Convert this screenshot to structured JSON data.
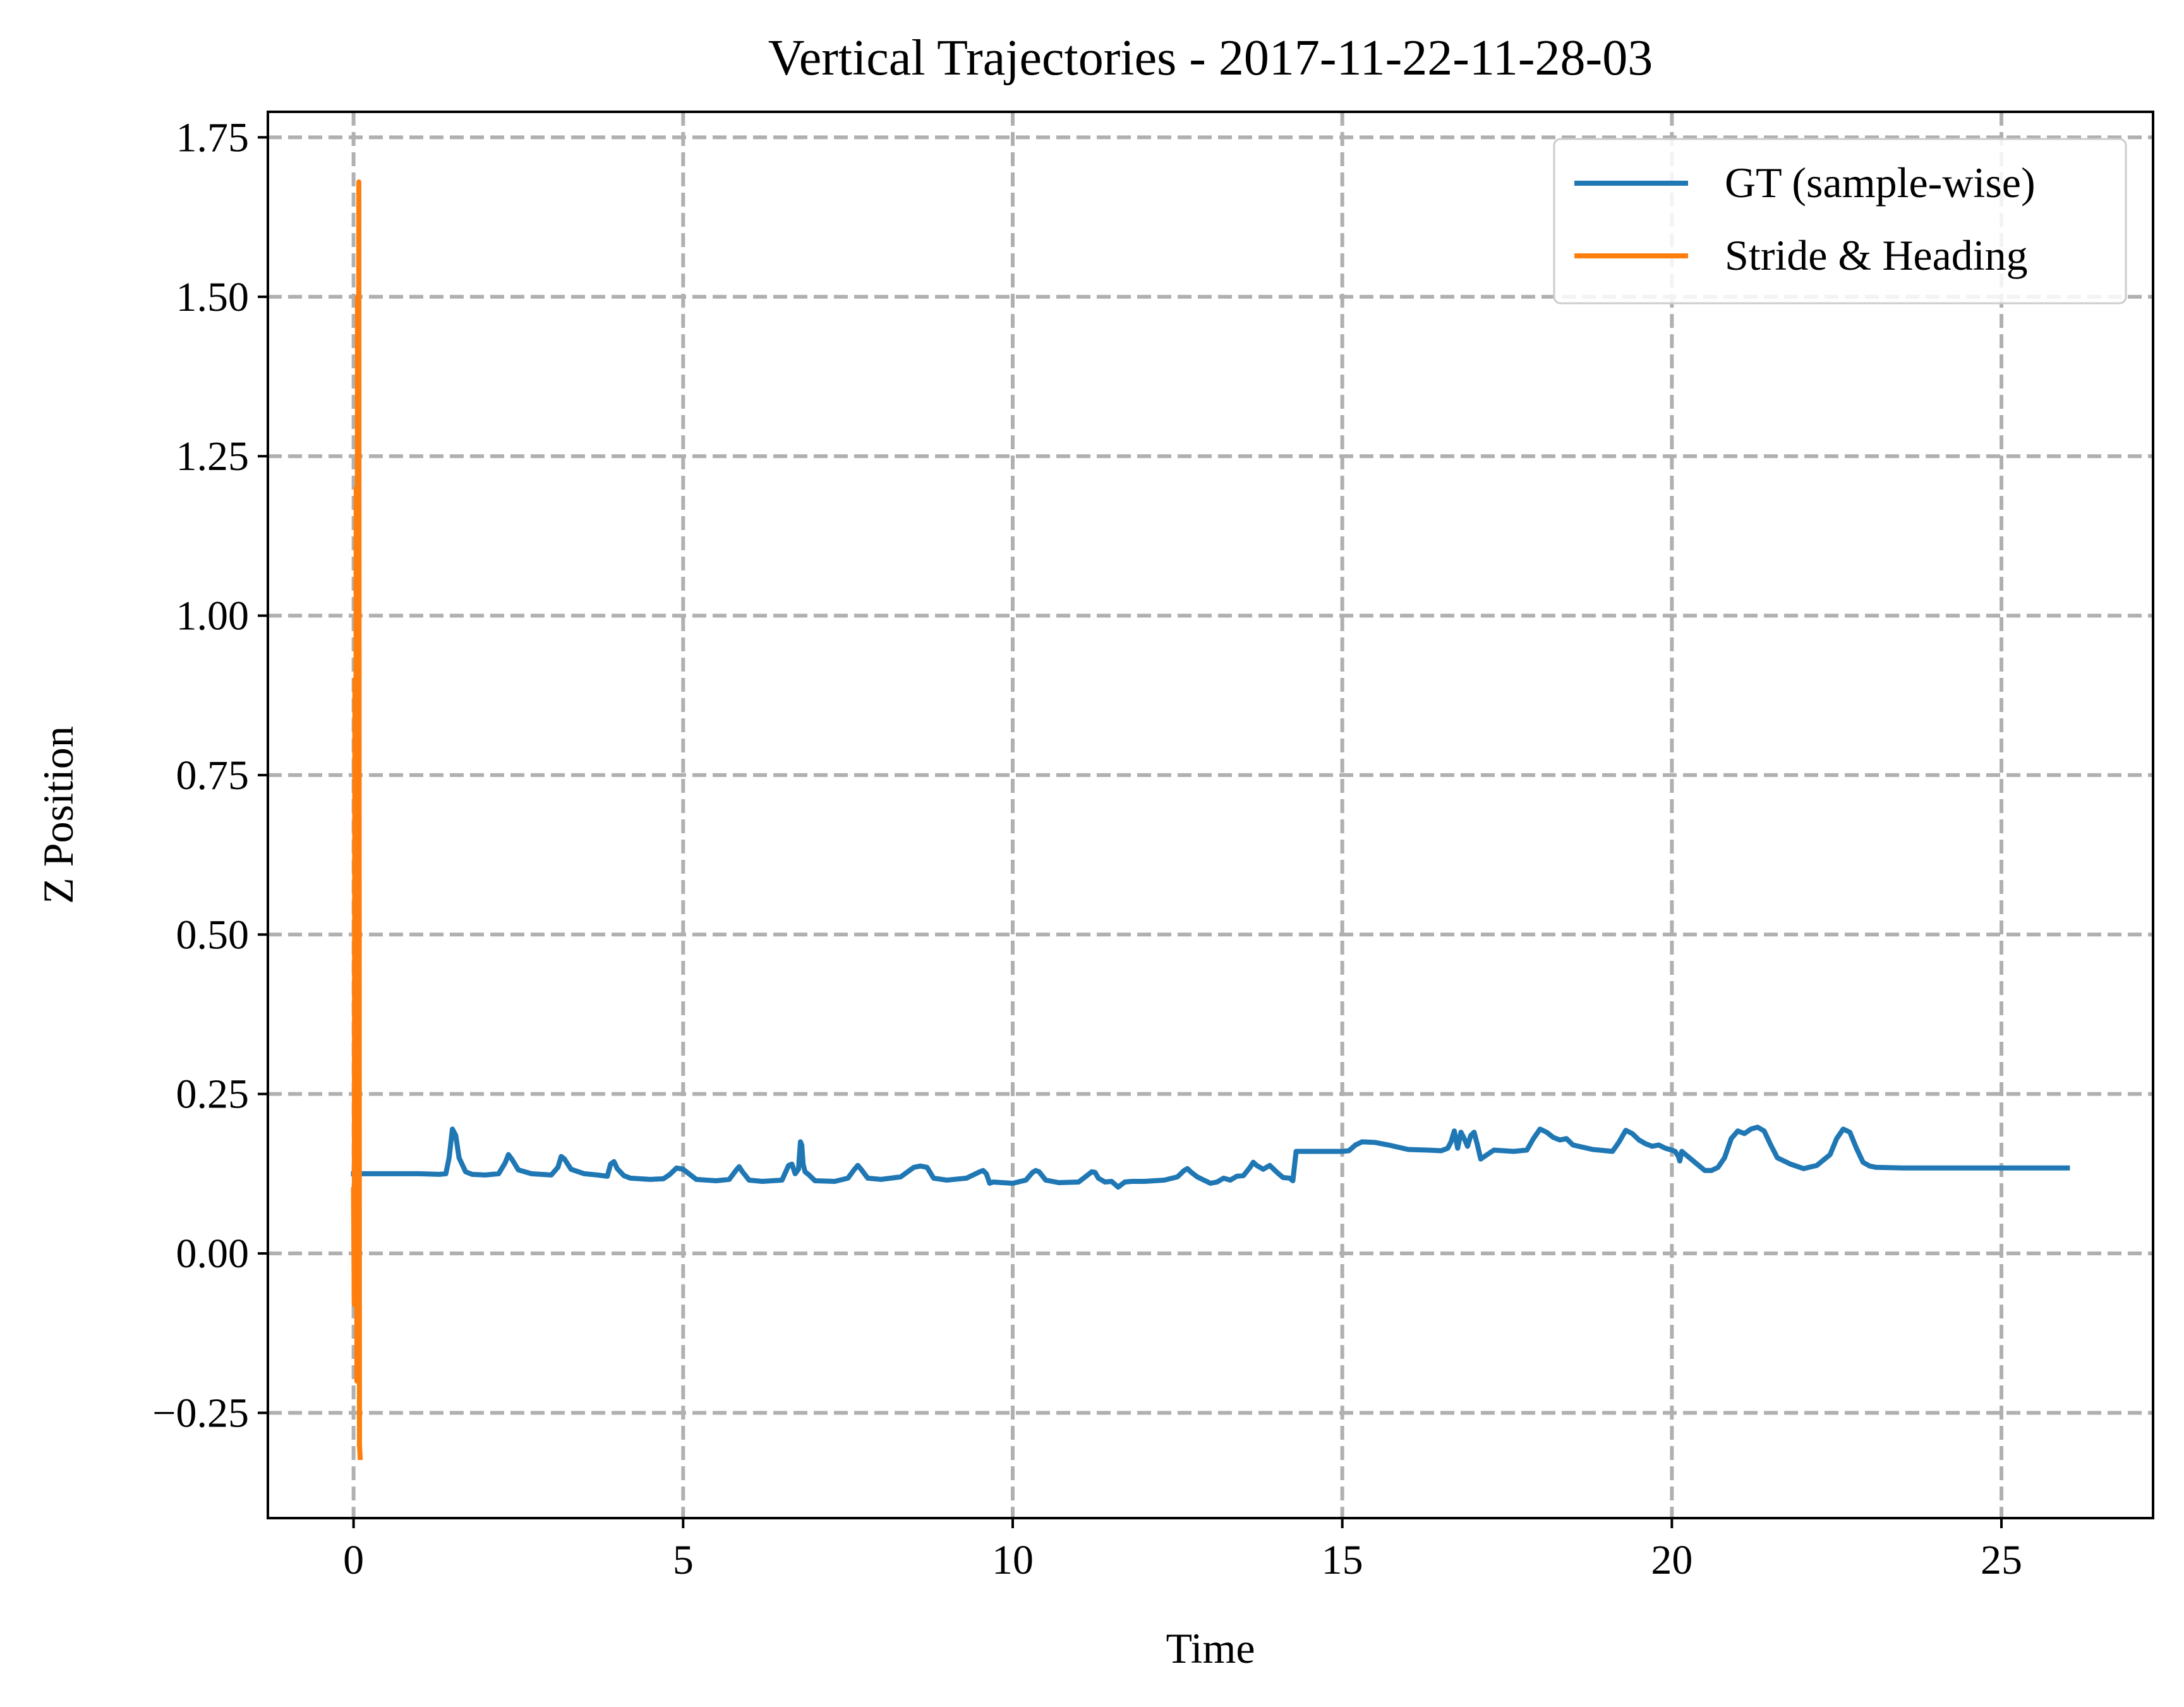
{
  "chart_data": {
    "type": "line",
    "title": "Vertical Trajectories - 2017-11-22-11-28-03",
    "xlabel": "Time",
    "ylabel": "Z Position",
    "xlim": [
      -1.3,
      27.3
    ],
    "ylim": [
      -0.415,
      1.79
    ],
    "xticks": [
      0,
      5,
      10,
      15,
      20,
      25
    ],
    "xtick_labels": [
      "0",
      "5",
      "10",
      "15",
      "20",
      "25"
    ],
    "yticks": [
      -0.25,
      0.0,
      0.25,
      0.5,
      0.75,
      1.0,
      1.25,
      1.5,
      1.75
    ],
    "ytick_labels": [
      "−0.25",
      "0.00",
      "0.25",
      "0.50",
      "0.75",
      "1.00",
      "1.25",
      "1.50",
      "1.75"
    ],
    "grid": true,
    "grid_style": "dashed",
    "legend_position": "top-right",
    "series": [
      {
        "name": "GT (sample-wise)",
        "color": "#1f77b4",
        "x": [
          0.0,
          0.5,
          1.0,
          1.3,
          1.4,
          1.45,
          1.5,
          1.55,
          1.6,
          1.7,
          1.8,
          2.0,
          2.2,
          2.3,
          2.35,
          2.4,
          2.5,
          2.7,
          3.0,
          3.1,
          3.15,
          3.2,
          3.3,
          3.5,
          3.7,
          3.85,
          3.9,
          3.95,
          4.0,
          4.1,
          4.2,
          4.5,
          4.7,
          4.8,
          4.9,
          5.0,
          5.2,
          5.5,
          5.7,
          5.8,
          5.85,
          5.9,
          6.0,
          6.2,
          6.5,
          6.6,
          6.65,
          6.7,
          6.75,
          6.78,
          6.8,
          6.82,
          6.85,
          6.9,
          7.0,
          7.3,
          7.5,
          7.6,
          7.65,
          7.7,
          7.8,
          8.0,
          8.3,
          8.5,
          8.6,
          8.7,
          8.8,
          9.0,
          9.3,
          9.5,
          9.55,
          9.6,
          9.65,
          9.7,
          10.0,
          10.2,
          10.3,
          10.35,
          10.4,
          10.5,
          10.7,
          11.0,
          11.1,
          11.2,
          11.25,
          11.3,
          11.4,
          11.5,
          11.6,
          11.7,
          11.8,
          12.0,
          12.3,
          12.5,
          12.6,
          12.65,
          12.7,
          12.8,
          13.0,
          13.1,
          13.2,
          13.3,
          13.4,
          13.5,
          13.6,
          13.65,
          13.7,
          13.8,
          13.9,
          14.0,
          14.1,
          14.2,
          14.25,
          14.3,
          14.5,
          14.8,
          15.0,
          15.1,
          15.2,
          15.3,
          15.5,
          15.7,
          16.0,
          16.3,
          16.5,
          16.6,
          16.65,
          16.7,
          16.75,
          16.8,
          16.85,
          16.9,
          16.95,
          17.0,
          17.05,
          17.1,
          17.3,
          17.6,
          17.8,
          17.9,
          18.0,
          18.1,
          18.2,
          18.3,
          18.4,
          18.5,
          18.8,
          19.0,
          19.1,
          19.2,
          19.3,
          19.4,
          19.5,
          19.6,
          19.7,
          19.8,
          19.9,
          20.0,
          20.05,
          20.1,
          20.12,
          20.15,
          20.5,
          20.6,
          20.7,
          20.8,
          20.9,
          21.0,
          21.1,
          21.2,
          21.3,
          21.4,
          21.5,
          21.6,
          21.8,
          22.0,
          22.2,
          22.4,
          22.5,
          22.6,
          22.7,
          22.8,
          22.9,
          23.0,
          23.1,
          23.5,
          24.0,
          25.0,
          26.0
        ],
        "y": [
          0.125,
          0.125,
          0.125,
          0.124,
          0.125,
          0.15,
          0.195,
          0.185,
          0.15,
          0.128,
          0.124,
          0.123,
          0.125,
          0.142,
          0.155,
          0.148,
          0.131,
          0.125,
          0.123,
          0.135,
          0.152,
          0.148,
          0.132,
          0.125,
          0.123,
          0.121,
          0.14,
          0.144,
          0.133,
          0.122,
          0.118,
          0.116,
          0.117,
          0.124,
          0.134,
          0.132,
          0.116,
          0.114,
          0.116,
          0.13,
          0.136,
          0.128,
          0.115,
          0.113,
          0.115,
          0.138,
          0.14,
          0.125,
          0.132,
          0.175,
          0.17,
          0.14,
          0.128,
          0.124,
          0.114,
          0.113,
          0.118,
          0.132,
          0.138,
          0.132,
          0.118,
          0.116,
          0.12,
          0.135,
          0.137,
          0.135,
          0.118,
          0.115,
          0.118,
          0.128,
          0.13,
          0.125,
          0.11,
          0.112,
          0.11,
          0.115,
          0.127,
          0.13,
          0.128,
          0.115,
          0.111,
          0.112,
          0.12,
          0.128,
          0.127,
          0.118,
          0.112,
          0.113,
          0.104,
          0.112,
          0.113,
          0.113,
          0.115,
          0.12,
          0.13,
          0.133,
          0.128,
          0.12,
          0.11,
          0.112,
          0.118,
          0.115,
          0.121,
          0.122,
          0.135,
          0.143,
          0.138,
          0.132,
          0.138,
          0.128,
          0.119,
          0.118,
          0.114,
          0.16,
          0.16,
          0.16,
          0.16,
          0.161,
          0.17,
          0.175,
          0.174,
          0.17,
          0.163,
          0.162,
          0.161,
          0.165,
          0.175,
          0.192,
          0.165,
          0.19,
          0.18,
          0.168,
          0.185,
          0.19,
          0.17,
          0.148,
          0.162,
          0.16,
          0.162,
          0.18,
          0.195,
          0.19,
          0.182,
          0.178,
          0.18,
          0.17,
          0.163,
          0.161,
          0.16,
          0.175,
          0.193,
          0.188,
          0.178,
          0.172,
          0.168,
          0.17,
          0.165,
          0.162,
          0.16,
          0.152,
          0.145,
          0.16,
          0.13,
          0.13,
          0.135,
          0.15,
          0.18,
          0.192,
          0.188,
          0.195,
          0.198,
          0.192,
          0.17,
          0.15,
          0.14,
          0.133,
          0.138,
          0.155,
          0.18,
          0.195,
          0.19,
          0.165,
          0.143,
          0.137,
          0.135,
          0.134,
          0.134,
          0.134,
          0.134
        ]
      },
      {
        "name": "Stride & Heading",
        "color": "#ff7f0e",
        "x": [
          0.0,
          0.01,
          0.02,
          0.03,
          0.04,
          0.05,
          0.06,
          0.07,
          0.08,
          0.09,
          0.1
        ],
        "y": [
          0.1,
          -0.08,
          0.9,
          0.3,
          1.2,
          -0.2,
          1.5,
          0.05,
          1.68,
          -0.3,
          -0.32
        ]
      }
    ]
  }
}
